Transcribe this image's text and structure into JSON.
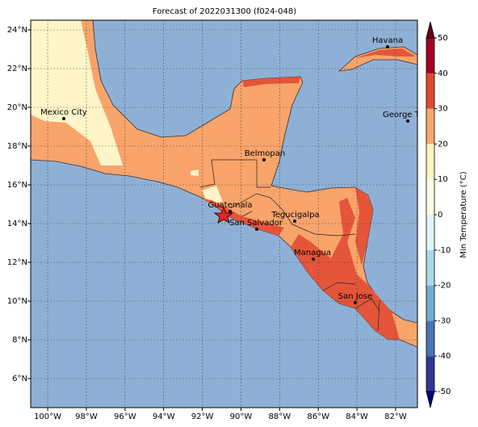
{
  "title": "Forecast of 2022031300 (f024-048)",
  "map": {
    "xlim": [
      -100.88,
      -80.87
    ],
    "ylim": [
      4.5,
      24.5
    ],
    "grid": true,
    "xticks": [
      {
        "value": -100,
        "label": "100°W"
      },
      {
        "value": -98,
        "label": "98°W"
      },
      {
        "value": -96,
        "label": "96°W"
      },
      {
        "value": -94,
        "label": "94°W"
      },
      {
        "value": -92,
        "label": "92°W"
      },
      {
        "value": -90,
        "label": "90°W"
      },
      {
        "value": -88,
        "label": "88°W"
      },
      {
        "value": -86,
        "label": "86°W"
      },
      {
        "value": -84,
        "label": "84°W"
      },
      {
        "value": -82,
        "label": "82°W"
      }
    ],
    "yticks": [
      {
        "value": 6,
        "label": "6°N"
      },
      {
        "value": 8,
        "label": "8°N"
      },
      {
        "value": 10,
        "label": "10°N"
      },
      {
        "value": 12,
        "label": "12°N"
      },
      {
        "value": 14,
        "label": "14°N"
      },
      {
        "value": 16,
        "label": "16°N"
      },
      {
        "value": 18,
        "label": "18°N"
      },
      {
        "value": 20,
        "label": "20°N"
      },
      {
        "value": 22,
        "label": "22°N"
      },
      {
        "value": 24,
        "label": "24°N"
      }
    ],
    "cities": [
      "Mexico City",
      "Belmopan",
      "Guatemala",
      "San Salvador",
      "Tegucigalpa",
      "Managua",
      "San Jose",
      "Havana",
      "George Town"
    ]
  },
  "colorbar": {
    "label": "Min Temperature (°C)",
    "lim": [
      -50,
      50
    ],
    "ticks": [
      -50,
      -40,
      -30,
      -20,
      -10,
      0,
      10,
      20,
      30,
      40,
      50
    ],
    "colors": [
      "#313695",
      "#4575b4",
      "#74add1",
      "#abd9e9",
      "#e0f3f8",
      "#fffde6",
      "#fff3bf",
      "#f9a86c",
      "#de4a30",
      "#a50026"
    ]
  }
}
